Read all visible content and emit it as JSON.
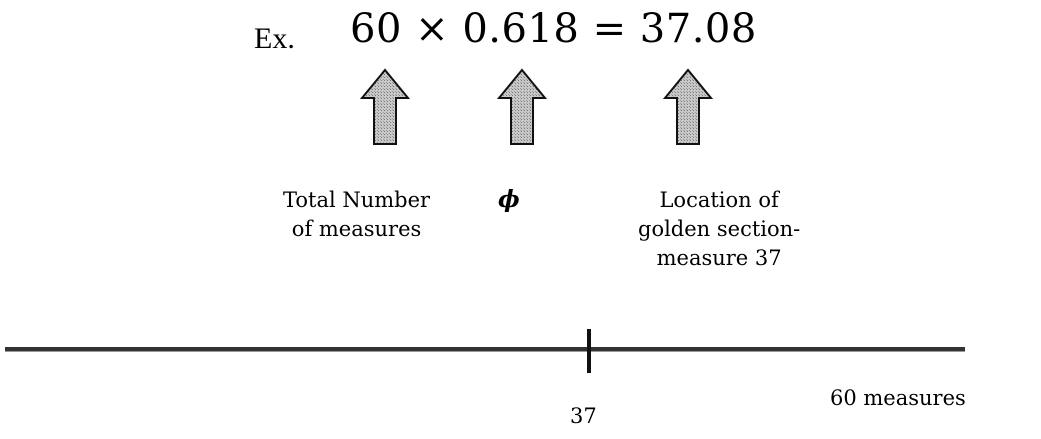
{
  "example": {
    "prefix": "Ex.",
    "equation": "60 × 0.618 = 37.08"
  },
  "labels": {
    "total_line1": "Total Number",
    "total_line2": "of measures",
    "phi": "ϕ",
    "location_line1": "Location of",
    "location_line2": "golden section-",
    "location_line3": "measure 37"
  },
  "timeline": {
    "marker_label": "37",
    "end_label": "60 measures",
    "marker_value": 37,
    "total_value": 60
  },
  "icons": {
    "arrow": "up-arrow-icon"
  },
  "colors": {
    "arrow_fill": "#bdbdbd",
    "line": "#222222"
  }
}
